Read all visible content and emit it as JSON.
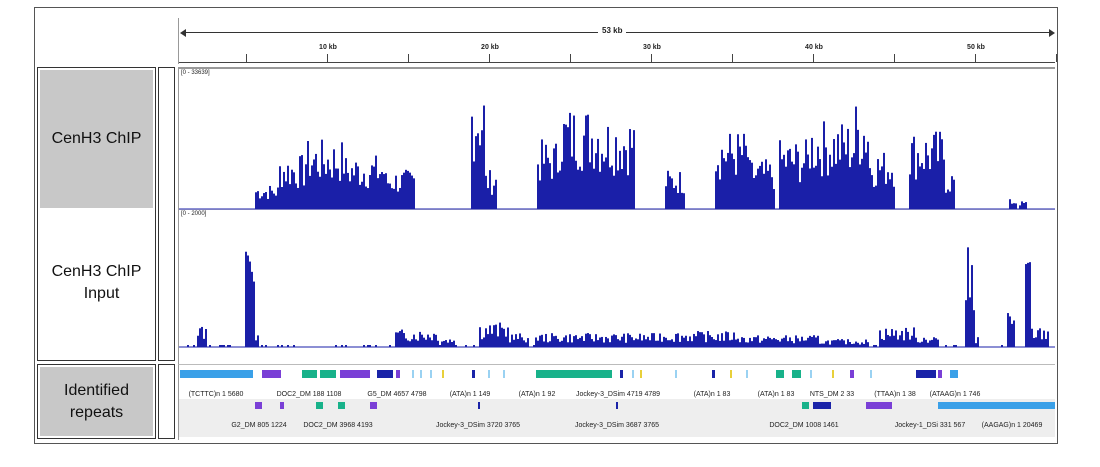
{
  "ruler": {
    "span_label": "53 kb",
    "ticks": [
      "10 kb",
      "20 kb",
      "30 kb",
      "40 kb",
      "50 kb"
    ]
  },
  "tracks": {
    "chip": {
      "name": "CenH3 ChIP",
      "range": "[0 - 33639]",
      "color": "#1a1fa8"
    },
    "input": {
      "name_line1": "CenH3 ChIP",
      "name_line2": "Input",
      "range": "[0 - 2000]",
      "color": "#1a1fa8"
    },
    "repeats": {
      "name_line1": "Identified",
      "name_line2": "repeats"
    }
  },
  "repeat_labels_row1": [
    "(TCTTC)n 1 5680",
    "DOC2_DM 188 1108",
    "G5_DM 4657 4798",
    "(ATA)n 1 149",
    "(ATA)n 1 92",
    "Jockey-3_DSim 4719 4789",
    "(ATA)n 1 83",
    "(ATA)n 1 83",
    "NTS_DM 2 33",
    "(TTAA)n 1 38",
    "(ATAAG)n 1 746"
  ],
  "repeat_labels_row2": [
    "G2_DM 805 1224",
    "DOC2_DM 3968 4193",
    "Jockey-3_DSim 3720 3765",
    "Jockey-3_DSim 3687 3765",
    "DOC2_DM 1008 1461",
    "Jockey-1_DSi 331 567",
    "(AAGAG)n 1 20469"
  ],
  "repeat_colors": {
    "blue": "#3aa0e8",
    "purple": "#7a3fd6",
    "teal": "#18b28a",
    "navy": "#1a23a8",
    "yellow": "#e8d03a",
    "light": "#9ad2f2"
  }
}
